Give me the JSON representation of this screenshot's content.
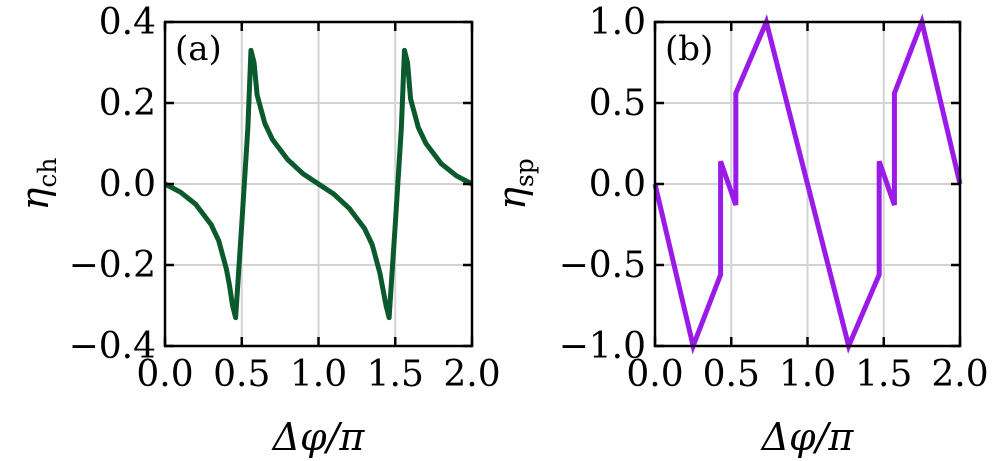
{
  "chart_data": [
    {
      "type": "line",
      "panel_label": "(a)",
      "ylabel_symbol": "η",
      "ylabel_sub": "ch",
      "xlabel": "Δφ/π",
      "xlim": [
        0.0,
        2.0
      ],
      "ylim": [
        -0.4,
        0.4
      ],
      "xticks": [
        0.0,
        0.5,
        1.0,
        1.5,
        2.0
      ],
      "xtick_labels": [
        "0.0",
        "0.5",
        "1.0",
        "1.5",
        "2.0"
      ],
      "yticks": [
        -0.4,
        -0.2,
        0.0,
        0.2,
        0.4
      ],
      "ytick_labels": [
        "−0.4",
        "−0.2",
        "0.0",
        "0.2",
        "0.4"
      ],
      "grid": true,
      "color": "#0b5a2e",
      "series": [
        {
          "x": [
            0.0,
            0.1,
            0.2,
            0.3,
            0.35,
            0.4,
            0.42,
            0.44,
            0.46,
            0.5,
            0.54,
            0.56,
            0.58,
            0.6,
            0.65,
            0.7,
            0.8,
            0.9,
            1.0,
            1.1,
            1.2,
            1.3,
            1.35,
            1.4,
            1.42,
            1.44,
            1.46,
            1.5,
            1.54,
            1.56,
            1.58,
            1.6,
            1.65,
            1.7,
            1.8,
            1.9,
            2.0
          ],
          "y": [
            0.0,
            -0.02,
            -0.05,
            -0.1,
            -0.14,
            -0.21,
            -0.25,
            -0.3,
            -0.33,
            -0.1,
            0.14,
            0.33,
            0.3,
            0.22,
            0.15,
            0.11,
            0.06,
            0.025,
            0.0,
            -0.025,
            -0.06,
            -0.11,
            -0.15,
            -0.22,
            -0.26,
            -0.3,
            -0.33,
            -0.1,
            0.14,
            0.33,
            0.3,
            0.21,
            0.14,
            0.1,
            0.05,
            0.02,
            0.0
          ]
        }
      ]
    },
    {
      "type": "line",
      "panel_label": "(b)",
      "ylabel_symbol": "η",
      "ylabel_sub": "sp",
      "xlabel": "Δφ/π",
      "xlim": [
        0.0,
        2.0
      ],
      "ylim": [
        -1.0,
        1.0
      ],
      "xticks": [
        0.0,
        0.5,
        1.0,
        1.5,
        2.0
      ],
      "xtick_labels": [
        "0.0",
        "0.5",
        "1.0",
        "1.5",
        "2.0"
      ],
      "yticks": [
        -1.0,
        -0.5,
        0.0,
        0.5,
        1.0
      ],
      "ytick_labels": [
        "−1.0",
        "−0.5",
        "0.0",
        "0.5",
        "1.0"
      ],
      "grid": true,
      "color": "#9a1be8",
      "series": [
        {
          "x": [
            0.0,
            0.25,
            0.43,
            0.43,
            0.53,
            0.53,
            0.73,
            1.27,
            1.47,
            1.47,
            1.57,
            1.57,
            1.75,
            2.0
          ],
          "y": [
            0.0,
            -1.0,
            -0.56,
            0.14,
            -0.13,
            0.56,
            1.0,
            -1.0,
            -0.56,
            0.14,
            -0.13,
            0.56,
            1.0,
            0.0
          ]
        }
      ]
    }
  ]
}
